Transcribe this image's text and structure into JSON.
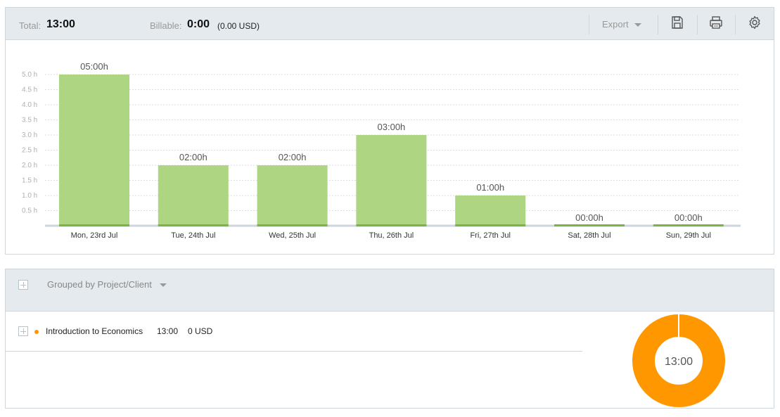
{
  "summary": {
    "total_label": "Total:",
    "total_value": "13:00",
    "billable_label": "Billable:",
    "billable_value": "0:00",
    "billable_amount": "(0.00 USD)"
  },
  "toolbar": {
    "export_label": "Export",
    "save_icon": "save-icon",
    "print_icon": "print-icon",
    "settings_icon": "gear-icon"
  },
  "colors": {
    "bar_fill": "#aed581",
    "bar_base": "#7cb342",
    "project_accent": "#ff9800",
    "header_bg": "#e4eaee"
  },
  "chart_data": {
    "type": "bar",
    "categories": [
      "Mon, 23rd Jul",
      "Tue, 24th Jul",
      "Wed, 25th Jul",
      "Thu, 26th Jul",
      "Fri, 27th Jul",
      "Sat, 28th Jul",
      "Sun, 29th Jul"
    ],
    "values": [
      5,
      2,
      2,
      3,
      1,
      0,
      0
    ],
    "data_labels": [
      "05:00h",
      "02:00h",
      "02:00h",
      "03:00h",
      "01:00h",
      "00:00h",
      "00:00h"
    ],
    "y_ticks": [
      "0.5 h",
      "1.0 h",
      "1.5 h",
      "2.0 h",
      "2.5 h",
      "3.0 h",
      "3.5 h",
      "4.0 h",
      "4.5 h",
      "5.0 h"
    ],
    "ylim": [
      0,
      5
    ],
    "grid": true
  },
  "grouping": {
    "label": "Grouped by Project/Client"
  },
  "projects": [
    {
      "name": "Introduction to Economics",
      "duration": "13:00",
      "amount": "0 USD",
      "color": "#ff9800"
    }
  ],
  "donut": {
    "center_label": "13:00",
    "segments": [
      {
        "name": "Introduction to Economics",
        "value": 13,
        "color": "#ff9800"
      }
    ]
  }
}
